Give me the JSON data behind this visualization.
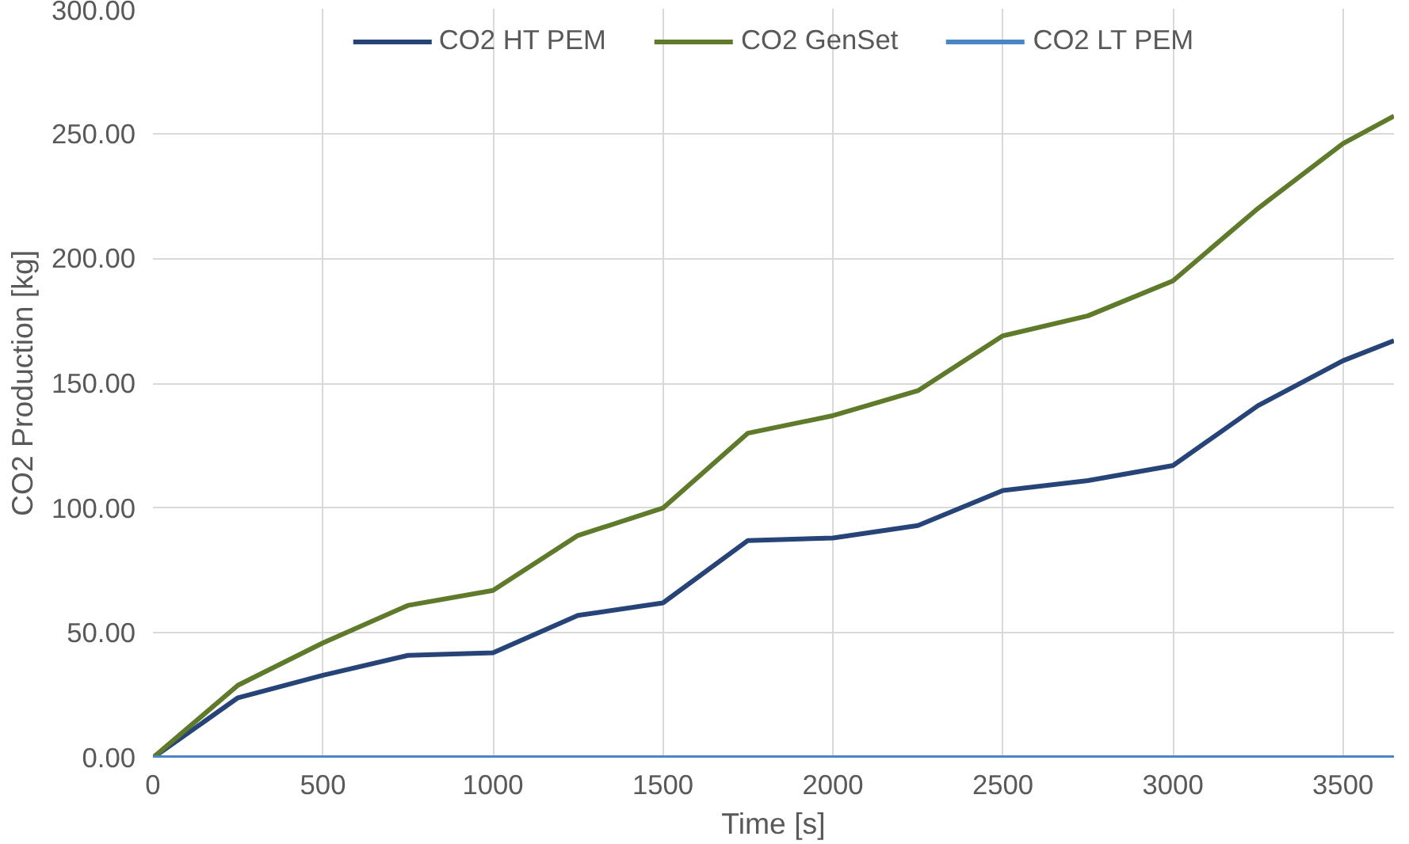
{
  "chart_data": {
    "type": "line",
    "xlabel": "Time [s]",
    "ylabel": "CO2 Production [kg]",
    "x": [
      0,
      250,
      500,
      750,
      1000,
      1250,
      1500,
      1750,
      2000,
      2250,
      2500,
      2750,
      3000,
      3250,
      3500,
      3650
    ],
    "series": [
      {
        "name": "CO2 HT PEM",
        "color": "#264478",
        "values": [
          0,
          24,
          33,
          41,
          42,
          57,
          62,
          87,
          88,
          93,
          107,
          111,
          117,
          141,
          159,
          167
        ]
      },
      {
        "name": "CO2 GenSet",
        "color": "#5e7a2a",
        "values": [
          0,
          29,
          46,
          61,
          67,
          89,
          100,
          130,
          137,
          147,
          169,
          177,
          191,
          220,
          246,
          257
        ]
      },
      {
        "name": "CO2 LT PEM",
        "color": "#4a86c5",
        "values": [
          0,
          0,
          0,
          0,
          0,
          0,
          0,
          0,
          0,
          0,
          0,
          0,
          0,
          0,
          0,
          0
        ]
      }
    ],
    "xlim": [
      0,
      3650
    ],
    "ylim": [
      0,
      300
    ],
    "xticks": [
      0,
      500,
      1000,
      1500,
      2000,
      2500,
      3000,
      3500
    ],
    "yticks": [
      {
        "value": 0,
        "label": "0.00"
      },
      {
        "value": 50,
        "label": "50.00"
      },
      {
        "value": 100,
        "label": "100.00"
      },
      {
        "value": 150,
        "label": "150.00"
      },
      {
        "value": 200,
        "label": "200.00"
      },
      {
        "value": 250,
        "label": "250.00"
      },
      {
        "value": 300,
        "label": "300.00"
      }
    ],
    "grid": true,
    "legend": "top",
    "marker": "none",
    "line_style": "solid"
  }
}
